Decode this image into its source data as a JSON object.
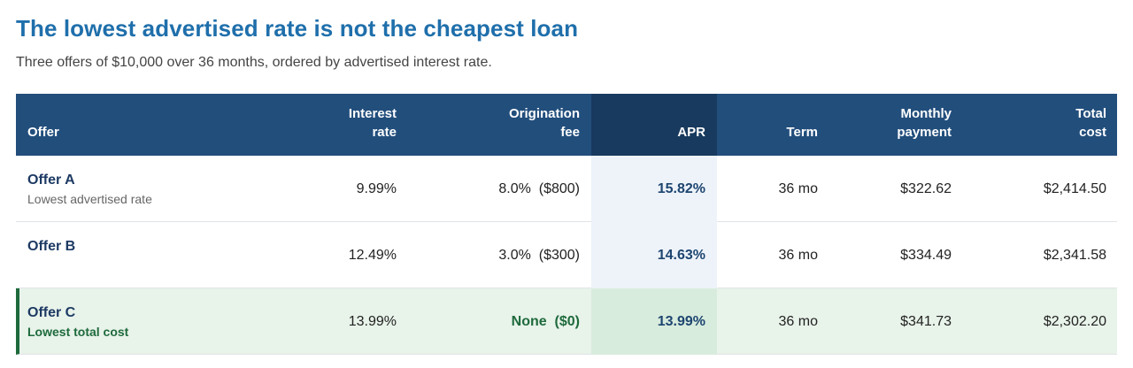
{
  "title": "The lowest advertised rate is not the cheapest loan",
  "subtitle": "Three offers of $10,000 over 36 months, ordered by advertised interest rate.",
  "headers": {
    "offer": "Offer",
    "rate_1": "Interest",
    "rate_2": "rate",
    "fee_1": "Origination",
    "fee_2": "fee",
    "apr": "APR",
    "term": "Term",
    "monthly_1": "Monthly",
    "monthly_2": "payment",
    "total_1": "Total",
    "total_2": "cost"
  },
  "rows": [
    {
      "name": "Offer A",
      "note": "Lowest advertised rate",
      "rate": "9.99%",
      "fee": "8.0%  ($800)",
      "apr": "15.82%",
      "term": "36 mo",
      "monthly": "$322.62",
      "total": "$2,414.50"
    },
    {
      "name": "Offer B",
      "note": "",
      "rate": "12.49%",
      "fee": "3.0%  ($300)",
      "apr": "14.63%",
      "term": "36 mo",
      "monthly": "$334.49",
      "total": "$2,341.58"
    },
    {
      "name": "Offer C",
      "note": "Lowest total cost",
      "rate": "13.99%",
      "fee": "None  ($0)",
      "apr": "13.99%",
      "term": "36 mo",
      "monthly": "$341.73",
      "total": "$2,302.20"
    }
  ],
  "colors": {
    "title": "#1f6fab",
    "header_bg": "#224e7c",
    "apr_header_bg": "#183a5e",
    "highlight_bg": "#e8f3ea",
    "highlight_accent": "#1e6a3c"
  }
}
